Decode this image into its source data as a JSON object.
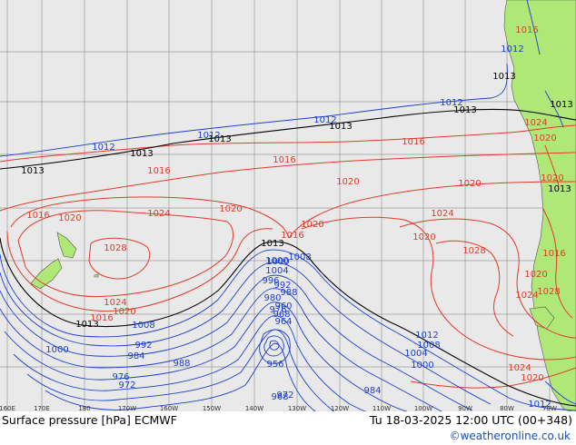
{
  "header": {
    "product_label": "Surface pressure [hPa] ECMWF",
    "valid_time": "Tu 18-03-2025 12:00 UTC (00+348)",
    "credit": "©weatheronline.co.uk"
  },
  "longitude_labels": [
    "160E",
    "170E",
    "180",
    "170W",
    "160W",
    "150W",
    "140W",
    "130W",
    "120W",
    "110W",
    "100W",
    "90W",
    "80W",
    "70W"
  ],
  "isobar_labels": {
    "black": [
      "1013",
      "1013",
      "1013",
      "1013",
      "1013",
      "1013",
      "1013",
      "1013",
      "1013",
      "1013"
    ],
    "red": [
      "1016",
      "1016",
      "1016",
      "1016",
      "1016",
      "1016",
      "1016",
      "1020",
      "1020",
      "1020",
      "1020",
      "1020",
      "1020",
      "1020",
      "1020",
      "1020",
      "1020",
      "1024",
      "1024",
      "1024",
      "1024",
      "1024",
      "1024",
      "1028",
      "1028",
      "1028",
      "1016",
      "1020"
    ],
    "blue": [
      "1012",
      "1012",
      "1012",
      "1012",
      "1008",
      "1008",
      "1004",
      "1000",
      "1000",
      "1000",
      "996",
      "992",
      "992",
      "988",
      "984",
      "980",
      "976",
      "972",
      "968",
      "964",
      "960",
      "956",
      "984",
      "988",
      "976",
      "972",
      "968",
      "1000",
      "1004",
      "1008",
      "1012",
      "1012",
      "1012"
    ]
  },
  "colors": {
    "ocean": "#e9e9e9",
    "land": "#b0e878",
    "grid": "#9a9a9a",
    "high": "#e23a2a",
    "low": "#1a3fd0",
    "neutral": "#000000"
  }
}
